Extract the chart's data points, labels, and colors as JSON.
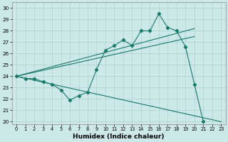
{
  "xlabel": "Humidex (Indice chaleur)",
  "bg_color": "#cce8e8",
  "grid_color": "#aad0d0",
  "line_color": "#1a7a6a",
  "main_line": {
    "x": [
      0,
      1,
      2,
      3,
      4,
      5,
      6,
      7,
      8,
      9,
      10,
      11,
      12,
      13,
      14,
      15,
      16,
      17,
      18,
      19,
      20,
      21,
      22,
      23
    ],
    "y": [
      24.0,
      23.8,
      23.8,
      23.5,
      23.3,
      22.8,
      21.9,
      22.3,
      22.6,
      24.6,
      26.3,
      26.7,
      27.2,
      26.7,
      28.0,
      28.0,
      29.5,
      28.3,
      28.0,
      26.6,
      23.3,
      20.0,
      null,
      null
    ]
  },
  "trend_upper": {
    "x": [
      0,
      20
    ],
    "y": [
      24.0,
      28.2
    ]
  },
  "trend_lower": {
    "x": [
      0,
      20
    ],
    "y": [
      24.0,
      27.5
    ]
  },
  "diagonal": {
    "x": [
      0,
      23
    ],
    "y": [
      24.0,
      20.0
    ]
  },
  "envelope_upper": {
    "x": [
      0,
      3,
      9,
      20
    ],
    "y": [
      24.0,
      23.5,
      24.6,
      28.2
    ]
  },
  "xlim": [
    -0.5,
    23.5
  ],
  "ylim": [
    19.8,
    30.5
  ],
  "yticks": [
    20,
    21,
    22,
    23,
    24,
    25,
    26,
    27,
    28,
    29,
    30
  ],
  "xticks": [
    0,
    1,
    2,
    3,
    4,
    5,
    6,
    7,
    8,
    9,
    10,
    11,
    12,
    13,
    14,
    15,
    16,
    17,
    18,
    19,
    20,
    21,
    22,
    23
  ]
}
